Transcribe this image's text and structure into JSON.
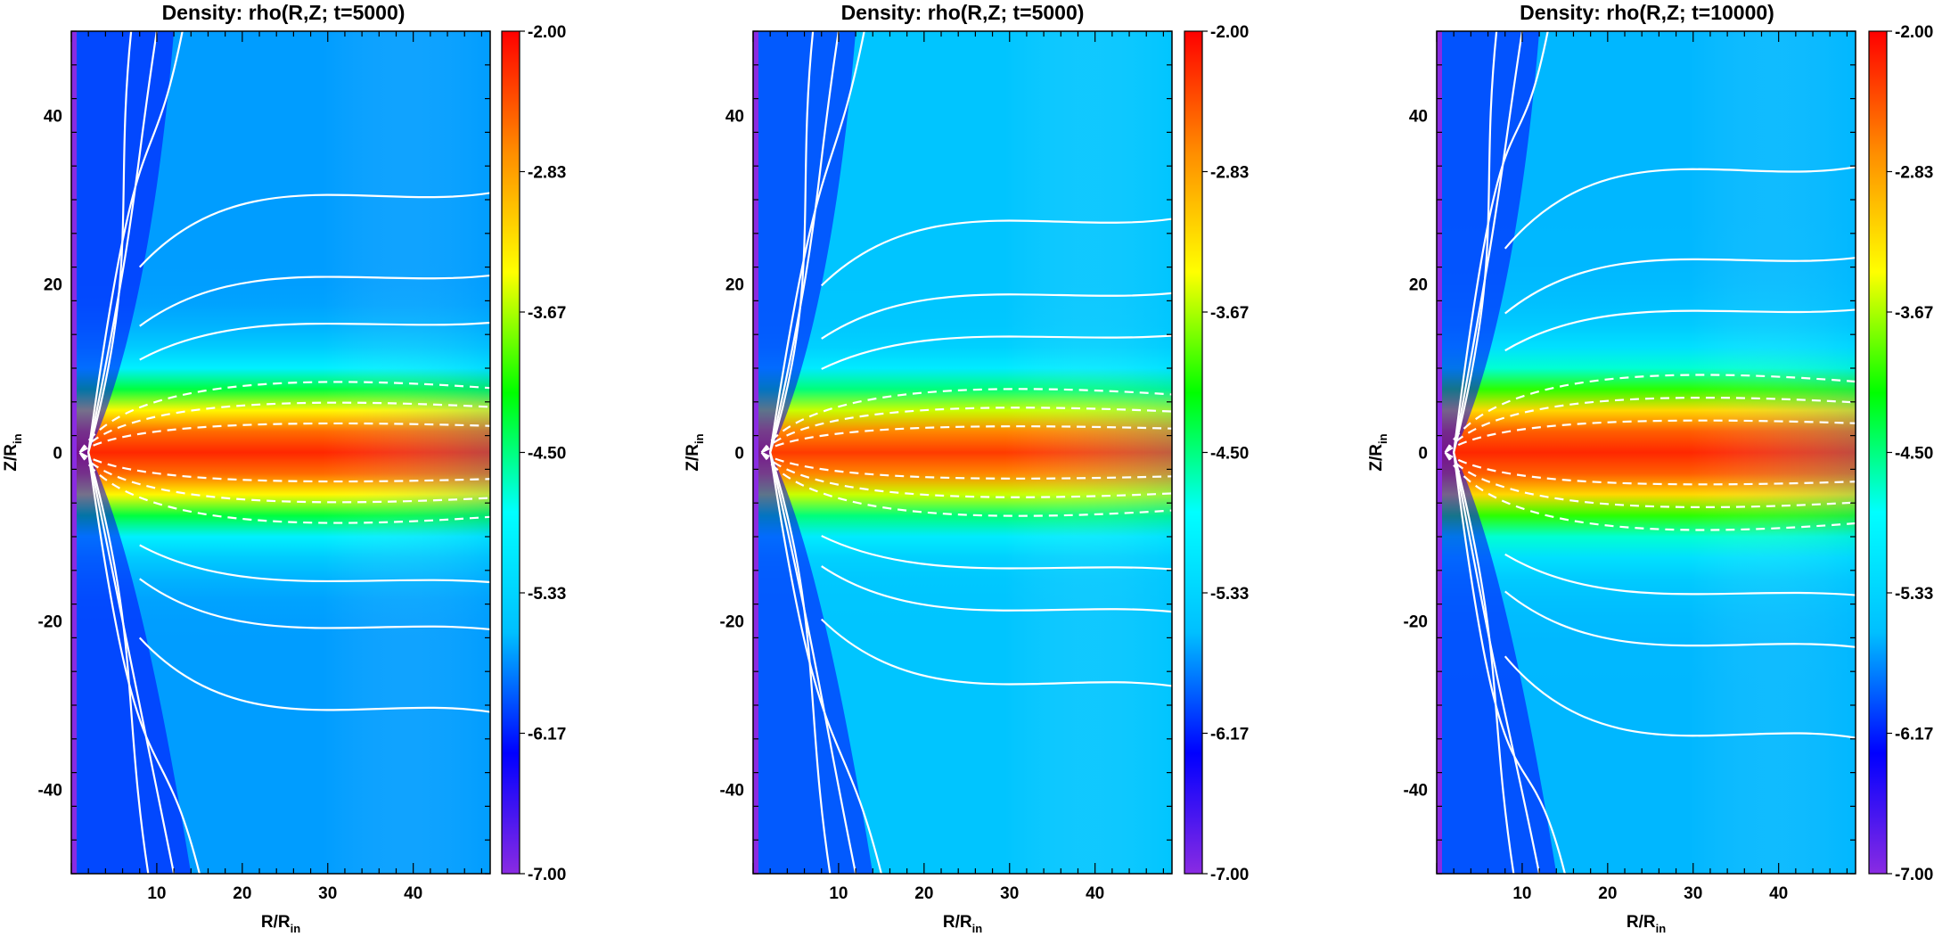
{
  "chart_data": [
    {
      "type": "heatmap",
      "title": "Density:   rho(R,Z; t=5000)",
      "xlabel": "R/R",
      "xlabel_sub": "in",
      "ylabel": "Z/R",
      "ylabel_sub": "in",
      "xlim": [
        0,
        49
      ],
      "ylim": [
        -50,
        50
      ],
      "xticks": [
        10,
        20,
        30,
        40
      ],
      "yticks": [
        -40,
        -20,
        0,
        20,
        40
      ],
      "colorbar_ticks": [
        "-2.00",
        "-2.83",
        "-3.67",
        "-4.50",
        "-5.33",
        "-6.17",
        "-7.00"
      ],
      "color_range": [
        -7.0,
        -2.0
      ],
      "colormap": [
        "#8a2be2",
        "#0000ff",
        "#00bfff",
        "#00ffff",
        "#00ff00",
        "#ffff00",
        "#ff8c00",
        "#ff0000"
      ],
      "disk_thickness": 10,
      "disk_peak_value": -2.2,
      "background_value": -5.7
    },
    {
      "type": "heatmap",
      "title": "Density:   rho(R,Z; t=5000)",
      "xlabel": "R/R",
      "xlabel_sub": "in",
      "ylabel": "Z/R",
      "ylabel_sub": "in",
      "xlim": [
        0,
        49
      ],
      "ylim": [
        -50,
        50
      ],
      "xticks": [
        10,
        20,
        30,
        40
      ],
      "yticks": [
        -40,
        -20,
        0,
        20,
        40
      ],
      "colorbar_ticks": [
        "-2.00",
        "-2.83",
        "-3.67",
        "-4.50",
        "-5.33",
        "-6.17",
        "-7.00"
      ],
      "color_range": [
        -7.0,
        -2.0
      ],
      "colormap": [
        "#8a2be2",
        "#0000ff",
        "#00bfff",
        "#00ffff",
        "#00ff00",
        "#ffff00",
        "#ff8c00",
        "#ff0000"
      ],
      "disk_thickness": 9,
      "disk_peak_value": -2.3,
      "background_value": -5.5
    },
    {
      "type": "heatmap",
      "title": "Density:   rho(R,Z; t=10000)",
      "xlabel": "R/R",
      "xlabel_sub": "in",
      "ylabel": "Z/R",
      "ylabel_sub": "in",
      "xlim": [
        0,
        49
      ],
      "ylim": [
        -50,
        50
      ],
      "xticks": [
        10,
        20,
        30,
        40
      ],
      "yticks": [
        -40,
        -20,
        0,
        20,
        40
      ],
      "colorbar_ticks": [
        "-2.00",
        "-2.83",
        "-3.67",
        "-4.50",
        "-5.33",
        "-6.17",
        "-7.00"
      ],
      "color_range": [
        -7.0,
        -2.0
      ],
      "colormap": [
        "#8a2be2",
        "#0000ff",
        "#00bfff",
        "#00ffff",
        "#00ff00",
        "#ffff00",
        "#ff8c00",
        "#ff0000"
      ],
      "disk_thickness": 11,
      "disk_peak_value": -2.2,
      "background_value": -5.6
    }
  ]
}
